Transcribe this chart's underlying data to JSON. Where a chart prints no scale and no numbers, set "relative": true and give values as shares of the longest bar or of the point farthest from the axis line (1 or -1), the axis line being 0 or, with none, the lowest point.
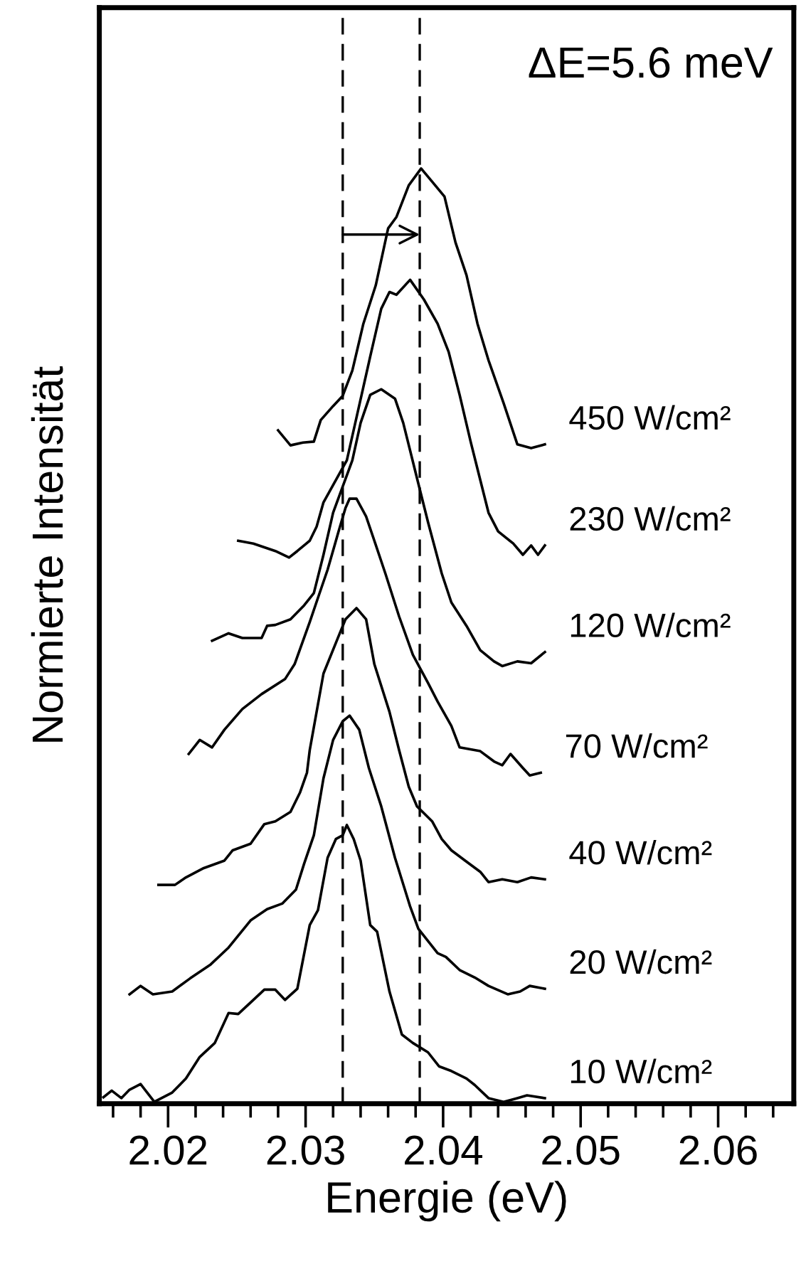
{
  "chart_data": {
    "type": "line",
    "relative": true,
    "xlabel": "Energie (eV)",
    "ylabel": "Normierte Intensität",
    "xlim": [
      2.015,
      2.0655
    ],
    "xticks": [
      {
        "value": 2.016,
        "label": null
      },
      {
        "value": 2.018,
        "label": null
      },
      2.02,
      {
        "value": 2.022,
        "label": null
      },
      {
        "value": 2.024,
        "label": null
      },
      {
        "value": 2.026,
        "label": null
      },
      {
        "value": 2.028,
        "label": null
      },
      2.03,
      {
        "value": 2.032,
        "label": null
      },
      {
        "value": 2.034,
        "label": null
      },
      {
        "value": 2.036,
        "label": null
      },
      {
        "value": 2.038,
        "label": null
      },
      2.04,
      {
        "value": 2.042,
        "label": null
      },
      {
        "value": 2.044,
        "label": null
      },
      {
        "value": 2.046,
        "label": null
      },
      {
        "value": 2.048,
        "label": null
      },
      2.05,
      {
        "value": 2.052,
        "label": null
      },
      {
        "value": 2.054,
        "label": null
      },
      {
        "value": 2.056,
        "label": null
      },
      {
        "value": 2.058,
        "label": null
      },
      2.06,
      {
        "value": 2.062,
        "label": null
      },
      {
        "value": 2.064,
        "label": null
      }
    ],
    "tick_labels": "x",
    "grid": false,
    "marker": "none",
    "line_style": "solid",
    "ref_lines": [
      {
        "axis": "x",
        "value": 2.0327,
        "line_style": "dashed",
        "color": "#000000"
      },
      {
        "axis": "x",
        "value": 2.0383,
        "line_style": "dashed",
        "color": "#000000"
      }
    ],
    "annotations": [
      "ΔE=5.6 meV"
    ],
    "series": [
      {
        "name": "10 W/cm²",
        "color": "#000000",
        "x": [
          2.0153,
          2.0159,
          2.0166,
          2.0172,
          2.018,
          2.019,
          2.0203,
          2.0213,
          2.0223,
          2.0234,
          2.0244,
          2.0251,
          2.0262,
          2.027,
          2.0278,
          2.0285,
          2.0294,
          2.0303,
          2.0309,
          2.0316,
          2.0322,
          2.0327,
          2.033,
          2.0335,
          2.034,
          2.0347,
          2.0352,
          2.0361,
          2.037,
          2.0378,
          2.0389,
          2.0397,
          2.0406,
          2.0417,
          2.0423,
          2.0433,
          2.0444,
          2.0454,
          2.0461,
          2.0474
        ],
        "values": [
          0.007,
          0.014,
          0.006,
          0.015,
          0.021,
          0.002,
          0.012,
          0.027,
          0.05,
          0.065,
          0.097,
          0.096,
          0.111,
          0.122,
          0.122,
          0.111,
          0.123,
          0.191,
          0.207,
          0.263,
          0.283,
          0.287,
          0.298,
          0.283,
          0.26,
          0.191,
          0.184,
          0.12,
          0.074,
          0.065,
          0.055,
          0.04,
          0.035,
          0.027,
          0.02,
          0.006,
          0.002,
          0.006,
          0.009,
          0.006
        ]
      },
      {
        "name": "20 W/cm²",
        "color": "#000000",
        "x": [
          2.0172,
          2.018,
          2.0189,
          2.0203,
          2.0216,
          2.0231,
          2.0244,
          2.026,
          2.0272,
          2.0283,
          2.0293,
          2.0299,
          2.0306,
          2.0313,
          2.032,
          2.0327,
          2.0332,
          2.0339,
          2.0346,
          2.0355,
          2.0365,
          2.0376,
          2.0382,
          2.0396,
          2.0402,
          2.0412,
          2.0423,
          2.0433,
          2.0447,
          2.0456,
          2.0463,
          2.0474
        ],
        "values": [
          0.117,
          0.126,
          0.117,
          0.12,
          0.134,
          0.149,
          0.167,
          0.196,
          0.208,
          0.214,
          0.229,
          0.257,
          0.287,
          0.348,
          0.389,
          0.409,
          0.415,
          0.4,
          0.359,
          0.318,
          0.263,
          0.211,
          0.187,
          0.161,
          0.157,
          0.143,
          0.135,
          0.126,
          0.117,
          0.12,
          0.126,
          0.123
        ]
      },
      {
        "name": "40 W/cm²",
        "color": "#000000",
        "x": [
          2.0193,
          2.0205,
          2.0213,
          2.0226,
          2.0241,
          2.0247,
          2.026,
          2.027,
          2.0278,
          2.0289,
          2.0296,
          2.0301,
          2.0303,
          2.0313,
          2.0324,
          2.0329,
          2.0337,
          2.0344,
          2.035,
          2.0361,
          2.0368,
          2.0375,
          2.0381,
          2.0392,
          2.0399,
          2.0406,
          2.0416,
          2.0427,
          2.0433,
          2.0443,
          2.0454,
          2.0464,
          2.0474
        ],
        "values": [
          0.234,
          0.234,
          0.242,
          0.252,
          0.26,
          0.271,
          0.278,
          0.299,
          0.302,
          0.312,
          0.333,
          0.354,
          0.378,
          0.46,
          0.5,
          0.518,
          0.53,
          0.518,
          0.47,
          0.419,
          0.378,
          0.339,
          0.318,
          0.302,
          0.283,
          0.271,
          0.26,
          0.248,
          0.237,
          0.24,
          0.237,
          0.242,
          0.24
        ]
      },
      {
        "name": "70 W/cm²",
        "color": "#000000",
        "x": [
          2.0215,
          2.0223,
          2.0232,
          2.0241,
          2.0254,
          2.0268,
          2.0285,
          2.0292,
          2.0303,
          2.0309,
          2.0316,
          2.0324,
          2.0329,
          2.0332,
          2.0337,
          2.0344,
          2.035,
          2.0358,
          2.0368,
          2.0378,
          2.0389,
          2.0396,
          2.0406,
          2.0412,
          2.0427,
          2.0437,
          2.0443,
          2.0449,
          2.0458,
          2.0463,
          2.0471
        ],
        "values": [
          0.374,
          0.389,
          0.381,
          0.4,
          0.422,
          0.438,
          0.454,
          0.47,
          0.515,
          0.541,
          0.571,
          0.612,
          0.637,
          0.647,
          0.647,
          0.628,
          0.602,
          0.567,
          0.521,
          0.48,
          0.45,
          0.43,
          0.404,
          0.381,
          0.377,
          0.366,
          0.362,
          0.374,
          0.359,
          0.351,
          0.354
        ]
      },
      {
        "name": "120 W/cm²",
        "color": "#000000",
        "x": [
          2.0232,
          2.0244,
          2.0254,
          2.0268,
          2.0272,
          2.0278,
          2.0289,
          2.0299,
          2.0306,
          2.0313,
          2.032,
          2.0334,
          2.034,
          2.0347,
          2.0355,
          2.0365,
          2.0371,
          2.0382,
          2.0389,
          2.0399,
          2.0406,
          2.0417,
          2.0427,
          2.0437,
          2.0443,
          2.0454,
          2.0464,
          2.0474
        ],
        "values": [
          0.495,
          0.503,
          0.498,
          0.498,
          0.511,
          0.512,
          0.518,
          0.533,
          0.546,
          0.587,
          0.632,
          0.688,
          0.728,
          0.758,
          0.764,
          0.754,
          0.728,
          0.663,
          0.622,
          0.567,
          0.536,
          0.511,
          0.485,
          0.473,
          0.468,
          0.473,
          0.471,
          0.483
        ]
      },
      {
        "name": "230 W/cm²",
        "color": "#000000",
        "x": [
          2.0251,
          2.0262,
          2.0278,
          2.0288,
          2.0294,
          2.0303,
          2.0308,
          2.0313,
          2.033,
          2.0347,
          2.0355,
          2.0361,
          2.0366,
          2.0376,
          2.0386,
          2.0396,
          2.0404,
          2.0412,
          2.042,
          2.0427,
          2.0433,
          2.044,
          2.0451,
          2.0458,
          2.0464,
          2.0469,
          2.0474
        ],
        "values": [
          0.602,
          0.599,
          0.591,
          0.584,
          0.591,
          0.602,
          0.617,
          0.643,
          0.688,
          0.799,
          0.85,
          0.868,
          0.865,
          0.881,
          0.86,
          0.834,
          0.804,
          0.758,
          0.708,
          0.667,
          0.632,
          0.612,
          0.599,
          0.587,
          0.597,
          0.587,
          0.597
        ]
      },
      {
        "name": "450 W/cm²",
        "color": "#000000",
        "x": [
          2.028,
          2.0289,
          2.0298,
          2.0306,
          2.0311,
          2.032,
          2.0327,
          2.0334,
          2.0342,
          2.0351,
          2.036,
          2.0366,
          2.0375,
          2.0384,
          2.0392,
          2.0401,
          2.0409,
          2.0417,
          2.0425,
          2.0433,
          2.0444,
          2.0454,
          2.0464,
          2.0474
        ],
        "values": [
          0.72,
          0.704,
          0.707,
          0.708,
          0.731,
          0.746,
          0.757,
          0.784,
          0.834,
          0.875,
          0.936,
          0.948,
          0.982,
          1.0,
          0.986,
          0.97,
          0.921,
          0.886,
          0.834,
          0.795,
          0.749,
          0.705,
          0.701,
          0.705
        ]
      }
    ]
  }
}
